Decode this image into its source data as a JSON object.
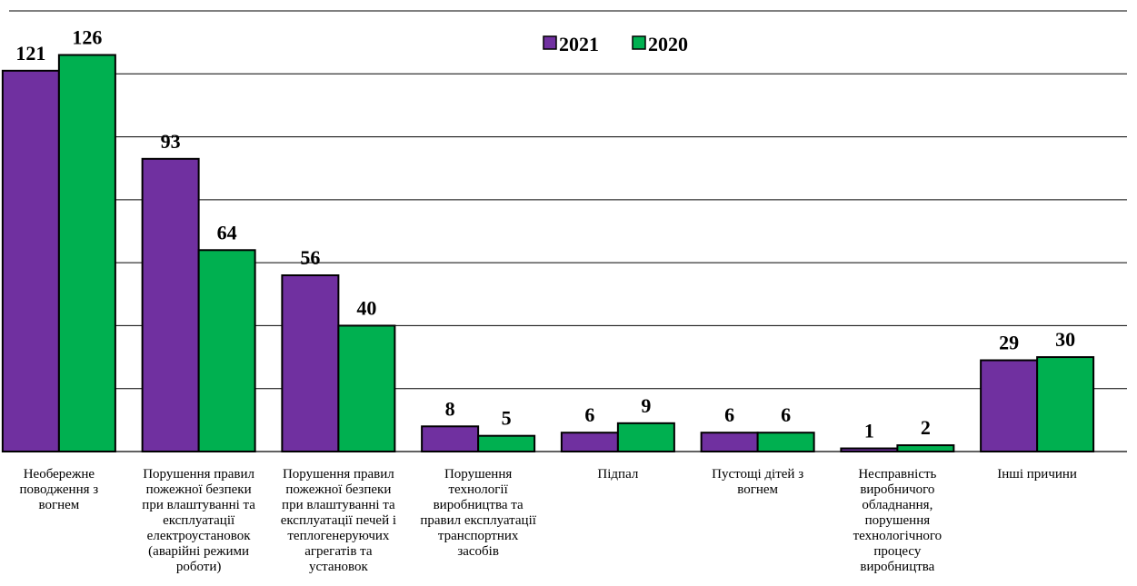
{
  "chart_data": {
    "type": "bar",
    "title": "",
    "xlabel": "",
    "ylabel": "",
    "ylim": [
      0,
      140
    ],
    "grid": true,
    "legend_position": "top-center",
    "categories": [
      "Необережне поводження з вогнем",
      "Порушення правил пожежної безпеки при влаштуванні та експлуатації електроустановок (аварійні режими роботи)",
      "Порушення правил пожежної безпеки при влаштуванні та експлуатації печей і теплогенеруючих агрегатів та установок",
      "Порушення технології виробництва та правил експлуатації транспортних засобів",
      "Підпал",
      "Пустощі дітей з вогнем",
      "Несправність виробничого обладнання, порушення технологічного процесу виробництва",
      "Інші причини"
    ],
    "category_lines": [
      [
        "Необережне",
        "поводження з",
        "вогнем"
      ],
      [
        "Порушення правил",
        "пожежної безпеки",
        "при влаштуванні та",
        "експлуатації",
        "електроустановок",
        "(аварійні режими",
        "роботи)"
      ],
      [
        "Порушення правил",
        "пожежної безпеки",
        "при влаштуванні та",
        "експлуатації печей і",
        "теплогенеруючих",
        "агрегатів та",
        "установок"
      ],
      [
        "Порушення",
        "технології",
        "виробництва та",
        "правил експлуатації",
        "транспортних",
        "засобів"
      ],
      [
        "Підпал"
      ],
      [
        "Пустощі дітей з",
        "вогнем"
      ],
      [
        "Несправність",
        "виробничого",
        "обладнання,",
        "порушення",
        "технологічного",
        "процесу",
        "виробництва"
      ],
      [
        "Інші причини"
      ]
    ],
    "series": [
      {
        "name": "2021",
        "color": "#7030A0",
        "values": [
          121,
          93,
          56,
          8,
          6,
          6,
          1,
          29
        ]
      },
      {
        "name": "2020",
        "color": "#00B050",
        "values": [
          126,
          64,
          40,
          5,
          9,
          6,
          2,
          30
        ]
      }
    ]
  }
}
